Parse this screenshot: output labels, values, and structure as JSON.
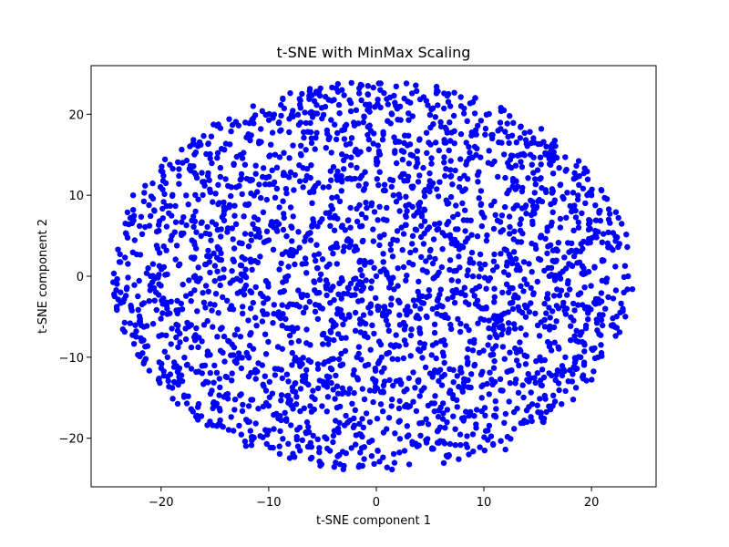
{
  "chart_data": {
    "type": "scatter",
    "title": "t-SNE with MinMax Scaling",
    "xlabel": "t-SNE component 1",
    "ylabel": "t-SNE component 2",
    "xlim": [
      -26.5,
      26.0
    ],
    "ylim": [
      -26.0,
      26.0
    ],
    "x_ticks": [
      -20,
      -10,
      0,
      10,
      20
    ],
    "y_ticks": [
      -20,
      -10,
      0,
      10,
      20
    ],
    "x_tick_labels": [
      "−20",
      "−10",
      "0",
      "10",
      "20"
    ],
    "y_tick_labels": [
      "−20",
      "−10",
      "0",
      "10",
      "20"
    ],
    "grid": false,
    "marker_color": "#0000ff",
    "data_extent": {
      "x": [
        -24.5,
        23.8
      ],
      "y": [
        -24.0,
        24.0
      ]
    },
    "points": [
      [
        -24.0,
        3.3
      ],
      [
        -23.2,
        -1.6
      ],
      [
        -23.0,
        6.4
      ],
      [
        -22.6,
        10.0
      ],
      [
        -22.0,
        -5.6
      ],
      [
        -21.8,
        -8.0
      ],
      [
        -21.2,
        1.0
      ],
      [
        -20.6,
        -3.0
      ],
      [
        -20.0,
        13.0
      ],
      [
        -19.4,
        -10.0
      ],
      [
        -19.0,
        5.0
      ],
      [
        -18.4,
        -13.4
      ],
      [
        -18.0,
        14.0
      ],
      [
        -17.2,
        -16.4
      ],
      [
        -16.8,
        8.0
      ],
      [
        -16.0,
        -6.0
      ],
      [
        -15.6,
        16.4
      ],
      [
        -15.2,
        -18.4
      ],
      [
        -14.4,
        2.0
      ],
      [
        -14.0,
        12.0
      ],
      [
        -13.4,
        -12.0
      ],
      [
        -12.8,
        18.6
      ],
      [
        -12.2,
        -20.4
      ],
      [
        -11.6,
        -2.0
      ],
      [
        -11.0,
        7.0
      ],
      [
        -10.6,
        20.4
      ],
      [
        -10.0,
        -16.0
      ],
      [
        -9.4,
        15.0
      ],
      [
        -9.0,
        -21.0
      ],
      [
        -8.4,
        3.0
      ],
      [
        -8.0,
        22.6
      ],
      [
        -7.2,
        -8.0
      ],
      [
        -6.8,
        11.0
      ],
      [
        -6.0,
        -22.4
      ],
      [
        -5.6,
        22.6
      ],
      [
        -5.0,
        -4.0
      ],
      [
        -4.4,
        17.0
      ],
      [
        -4.0,
        -14.0
      ],
      [
        -3.2,
        23.0
      ],
      [
        -3.0,
        -23.4
      ],
      [
        -2.4,
        6.0
      ],
      [
        -1.8,
        -10.0
      ],
      [
        -1.2,
        19.0
      ],
      [
        -0.6,
        -18.0
      ],
      [
        0.0,
        0.0
      ],
      [
        0.4,
        23.8
      ],
      [
        1.0,
        -23.6
      ],
      [
        1.6,
        10.0
      ],
      [
        2.2,
        -6.0
      ],
      [
        2.8,
        23.8
      ],
      [
        3.2,
        15.0
      ],
      [
        3.8,
        -21.0
      ],
      [
        4.4,
        4.0
      ],
      [
        5.0,
        -12.0
      ],
      [
        5.6,
        23.4
      ],
      [
        6.2,
        -20.4
      ],
      [
        6.8,
        19.0
      ],
      [
        7.4,
        -2.0
      ],
      [
        8.0,
        9.0
      ],
      [
        8.6,
        -22.0
      ],
      [
        9.2,
        22.0
      ],
      [
        9.8,
        -15.0
      ],
      [
        10.4,
        14.0
      ],
      [
        11.0,
        -6.0
      ],
      [
        11.6,
        20.4
      ],
      [
        12.0,
        -21.4
      ],
      [
        12.8,
        3.0
      ],
      [
        13.4,
        18.4
      ],
      [
        14.0,
        -18.0
      ],
      [
        14.6,
        8.0
      ],
      [
        15.2,
        -10.0
      ],
      [
        15.8,
        16.0
      ],
      [
        16.4,
        -16.0
      ],
      [
        17.0,
        0.0
      ],
      [
        17.6,
        13.0
      ],
      [
        18.2,
        -13.0
      ],
      [
        18.8,
        6.0
      ],
      [
        19.4,
        -4.0
      ],
      [
        20.0,
        10.0
      ],
      [
        20.6,
        -10.0
      ],
      [
        21.0,
        2.0
      ],
      [
        21.6,
        7.0
      ],
      [
        22.0,
        -6.0
      ],
      [
        22.6,
        4.0
      ],
      [
        23.0,
        -2.0
      ],
      [
        23.4,
        0.0
      ],
      [
        23.8,
        -1.6
      ]
    ]
  }
}
